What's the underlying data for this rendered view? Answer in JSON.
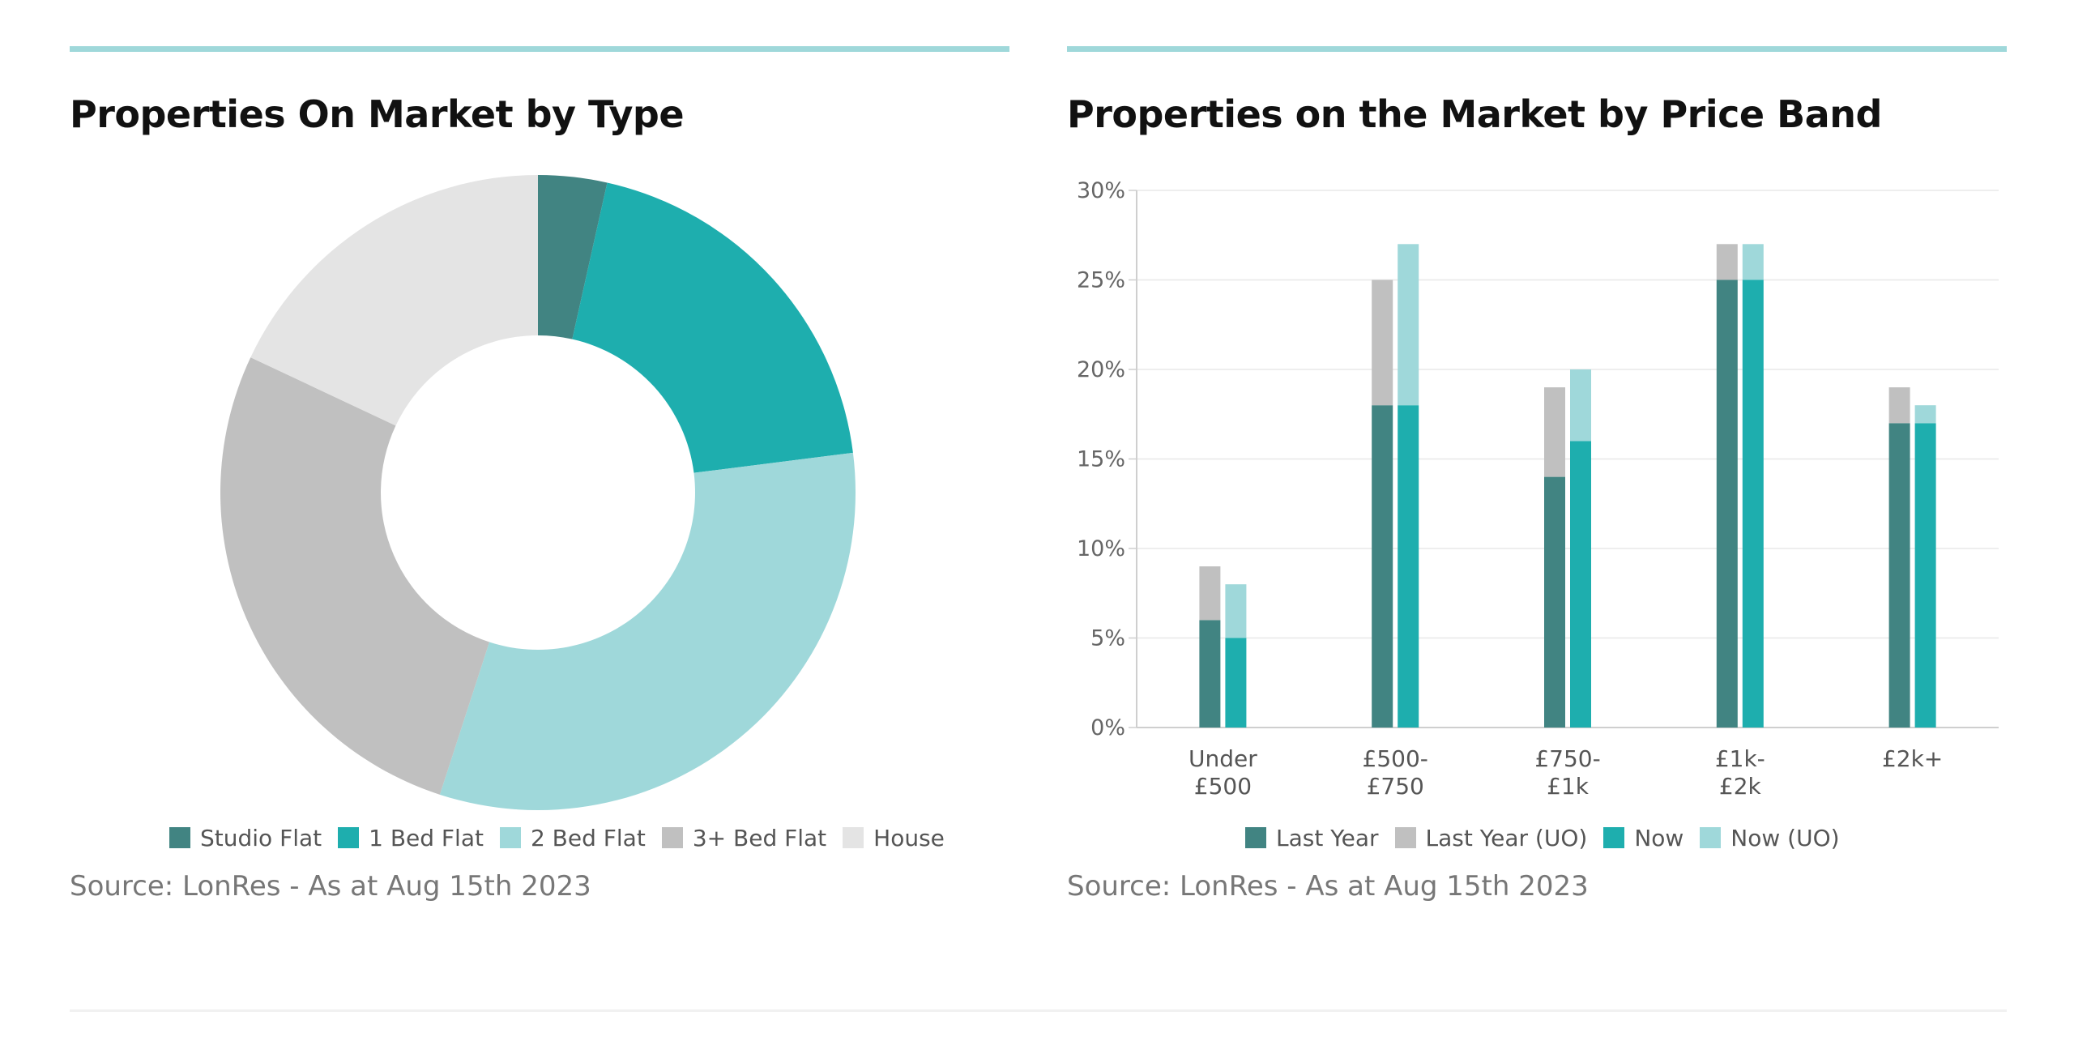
{
  "panels": {
    "left": {
      "title": "Properties On Market by Type",
      "source": "Source: LonRes - As at Aug 15th 2023"
    },
    "right": {
      "title": "Properties on the Market by Price Band",
      "source": "Source: LonRes - As at Aug 15th 2023"
    }
  },
  "colors": {
    "accent_bar": "#9fd8da",
    "dark_teal": "#418482",
    "teal": "#1eaeae",
    "light_teal": "#9fd8da",
    "grey": "#c0c0c0",
    "light_grey": "#e4e4e4"
  },
  "chart_data": [
    {
      "type": "pie",
      "variant": "donut",
      "title": "Properties On Market by Type",
      "labels": [
        "Studio Flat",
        "1 Bed Flat",
        "2 Bed Flat",
        "3+ Bed Flat",
        "House"
      ],
      "values": [
        3.5,
        19.5,
        32,
        27,
        18
      ],
      "colors": [
        "#418482",
        "#1eaeae",
        "#9fd8da",
        "#c0c0c0",
        "#e4e4e4"
      ],
      "legend": "bottom"
    },
    {
      "type": "bar",
      "variant": "stacked-grouped",
      "title": "Properties on the Market by Price Band",
      "categories": [
        [
          "Under",
          "£500"
        ],
        [
          "£500-",
          "£750"
        ],
        [
          "£750-",
          "£1k"
        ],
        [
          "£1k-",
          "£2k"
        ],
        [
          "£2k+"
        ]
      ],
      "series": [
        {
          "name": "Last Year",
          "stack": "last_year",
          "color": "#418482",
          "values": [
            6,
            18,
            14,
            25,
            17
          ]
        },
        {
          "name": "Last Year (UO)",
          "stack": "last_year",
          "color": "#c0c0c0",
          "values": [
            3,
            7,
            5,
            2,
            2
          ]
        },
        {
          "name": "Now",
          "stack": "now",
          "color": "#1eaeae",
          "values": [
            5,
            18,
            16,
            25,
            17
          ]
        },
        {
          "name": "Now (UO)",
          "stack": "now",
          "color": "#9fd8da",
          "values": [
            3,
            9,
            4,
            2,
            1
          ]
        }
      ],
      "yticks": [
        "0%",
        "5%",
        "10%",
        "15%",
        "20%",
        "25%",
        "30%"
      ],
      "ylim": [
        0,
        30
      ],
      "grid": true,
      "legend": "bottom"
    }
  ]
}
